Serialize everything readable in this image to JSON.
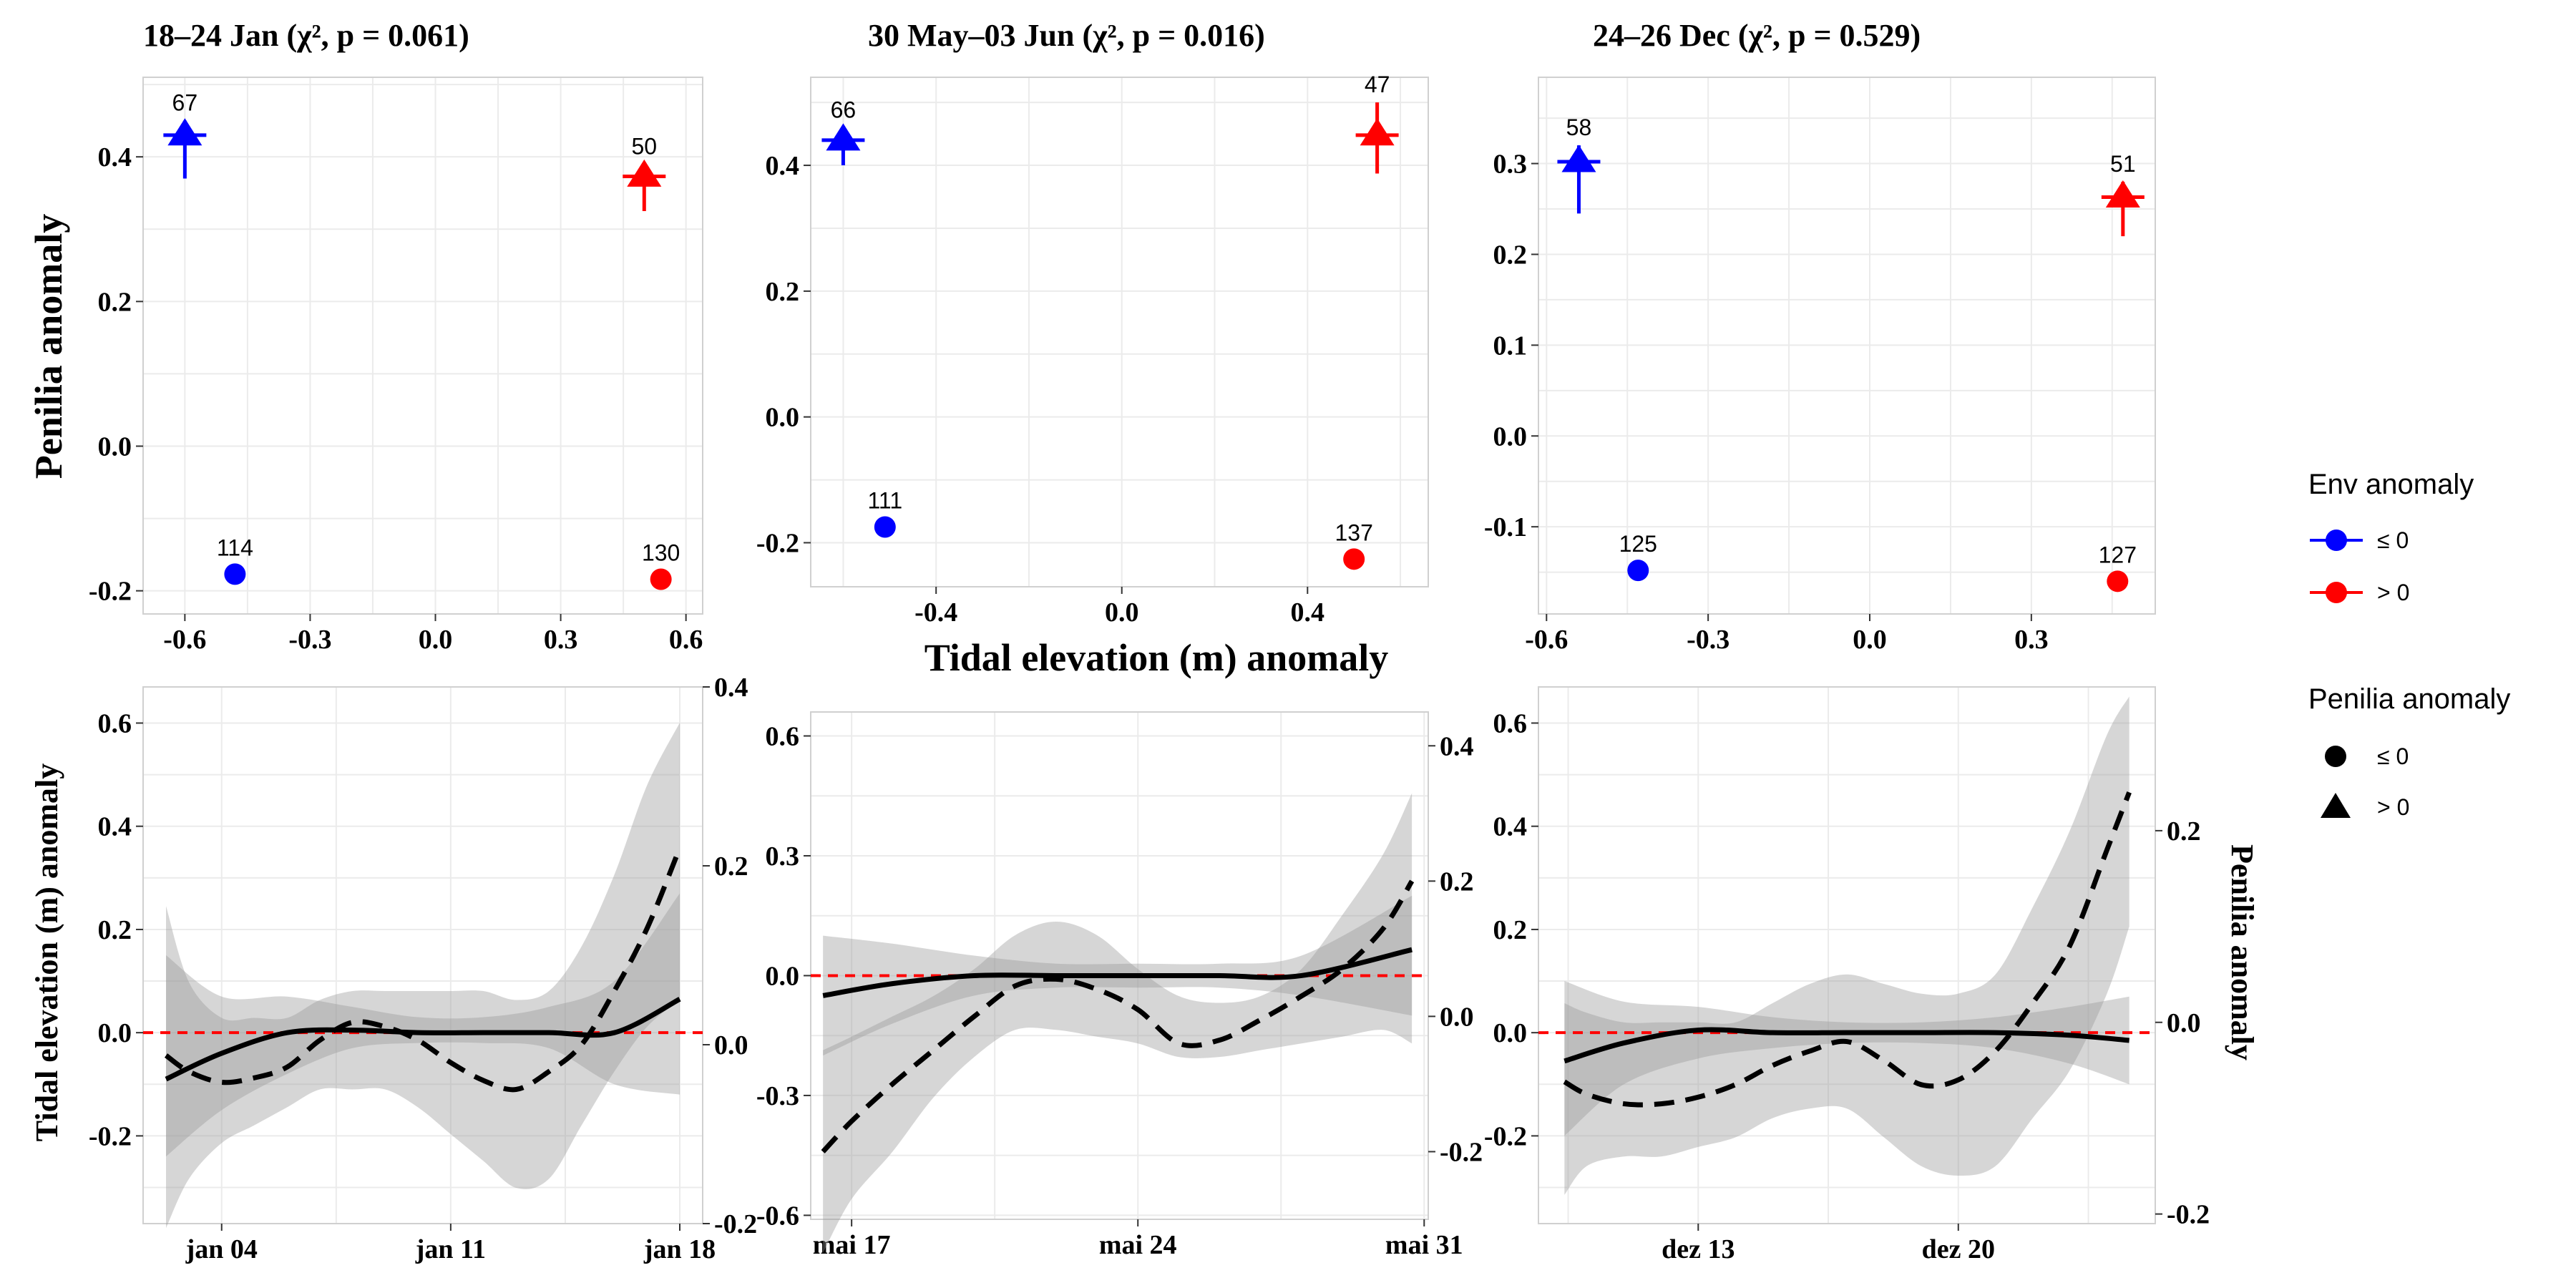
{
  "figure": {
    "top_ylabel": "Penilia anomaly",
    "top_xlabel": "Tidal elevation (m) anomaly",
    "bottom_ylabel_left": "Tidal elevation (m) anomaly",
    "bottom_ylabel_right": "Penilia anomaly"
  },
  "legend": {
    "env_title": "Env anomaly",
    "env_items": [
      {
        "label": "≤ 0",
        "color": "#0000ff"
      },
      {
        "label": "> 0",
        "color": "#ff0000"
      }
    ],
    "pen_title": "Penilia anomaly",
    "pen_items": [
      {
        "label": "≤ 0",
        "shape": "circle"
      },
      {
        "label": "> 0",
        "shape": "triangle"
      }
    ]
  },
  "colors": {
    "env_low": "#0000ff",
    "env_high": "#ff0000",
    "band": "#999999",
    "zero_line": "#ff0000",
    "grid": "#ebebeb",
    "panel_border": "#d0d0d0"
  },
  "chart_data": [
    {
      "type": "scatter",
      "title": "18–24 Jan (χ², p = 0.061)",
      "xlim": [
        -0.7,
        0.64
      ],
      "ylim": [
        -0.232,
        0.51
      ],
      "xticks": [
        -0.6,
        -0.3,
        0.0,
        0.3,
        0.6
      ],
      "xtick_labels": [
        "-0.6",
        "-0.3",
        "0.0",
        "0.3",
        "0.6"
      ],
      "yticks": [
        -0.2,
        0.0,
        0.2,
        0.4
      ],
      "ytick_labels": [
        "-0.2",
        "0.0",
        "0.2",
        "0.4"
      ],
      "points": [
        {
          "x": -0.6,
          "y": 0.43,
          "err": [
            0.37,
            0.45
          ],
          "env": "low",
          "penilia": "high",
          "n": "67"
        },
        {
          "x": 0.5,
          "y": 0.373,
          "err": [
            0.325,
            0.39
          ],
          "env": "high",
          "penilia": "high",
          "n": "50"
        },
        {
          "x": -0.48,
          "y": -0.177,
          "env": "low",
          "penilia": "low",
          "n": "114"
        },
        {
          "x": 0.54,
          "y": -0.184,
          "env": "high",
          "penilia": "low",
          "n": "130"
        }
      ]
    },
    {
      "type": "scatter",
      "title": "30 May–03 Jun (χ², p = 0.016)",
      "xlim": [
        -0.67,
        0.66
      ],
      "ylim": [
        -0.27,
        0.54
      ],
      "xticks": [
        -0.4,
        0.0,
        0.4
      ],
      "xtick_labels": [
        "-0.4",
        "0.0",
        "0.4"
      ],
      "yticks": [
        -0.2,
        0.0,
        0.2,
        0.4
      ],
      "ytick_labels": [
        "-0.2",
        "0.0",
        "0.2",
        "0.4"
      ],
      "points": [
        {
          "x": -0.6,
          "y": 0.44,
          "err": [
            0.4,
            0.46
          ],
          "env": "low",
          "penilia": "high",
          "n": "66"
        },
        {
          "x": 0.55,
          "y": 0.448,
          "err": [
            0.387,
            0.5
          ],
          "env": "high",
          "penilia": "high",
          "n": "47"
        },
        {
          "x": -0.51,
          "y": -0.175,
          "env": "low",
          "penilia": "low",
          "n": "111"
        },
        {
          "x": 0.5,
          "y": -0.226,
          "env": "high",
          "penilia": "low",
          "n": "137"
        }
      ]
    },
    {
      "type": "scatter",
      "title": "24–26 Dec (χ², p = 0.529)",
      "xlim": [
        -0.615,
        0.53
      ],
      "ylim": [
        -0.196,
        0.395
      ],
      "xticks": [
        -0.6,
        -0.3,
        0.0,
        0.3
      ],
      "xtick_labels": [
        "-0.6",
        "-0.3",
        "0.0",
        "0.3"
      ],
      "yticks": [
        -0.1,
        0.0,
        0.1,
        0.2,
        0.3
      ],
      "ytick_labels": [
        "-0.1",
        "0.0",
        "0.1",
        "0.2",
        "0.3"
      ],
      "points": [
        {
          "x": -0.54,
          "y": 0.302,
          "err": [
            0.245,
            0.32
          ],
          "env": "low",
          "penilia": "high",
          "n": "58"
        },
        {
          "x": 0.47,
          "y": 0.263,
          "err": [
            0.22,
            0.28
          ],
          "env": "high",
          "penilia": "high",
          "n": "51"
        },
        {
          "x": -0.43,
          "y": -0.148,
          "env": "low",
          "penilia": "low",
          "n": "125"
        },
        {
          "x": 0.46,
          "y": -0.16,
          "env": "high",
          "penilia": "low",
          "n": "127"
        }
      ]
    },
    {
      "type": "line",
      "xlim": [
        1.6,
        18.7
      ],
      "ylim": [
        -0.37,
        0.67
      ],
      "ylim_right": [
        -0.2,
        0.4
      ],
      "xticks": [
        4,
        11,
        18
      ],
      "xtick_labels": [
        "jan 04",
        "jan 11",
        "jan 18"
      ],
      "yticks": [
        -0.2,
        0.0,
        0.2,
        0.4,
        0.6
      ],
      "ytick_labels": [
        "-0.2",
        "0.0",
        "0.2",
        "0.4",
        "0.6"
      ],
      "yticks_right": [
        -0.2,
        0.0,
        0.2,
        0.4
      ],
      "ytick_labels_right": [
        "-0.2",
        "0.0",
        "0.2",
        "0.4"
      ],
      "tide_x": [
        2.3,
        4,
        6,
        8,
        10,
        12,
        14,
        16,
        18
      ],
      "tide": [
        -0.09,
        -0.04,
        0.0,
        0.005,
        0.0,
        0.0,
        0.0,
        0.0,
        0.065
      ],
      "tide_lo": [
        -0.24,
        -0.15,
        -0.08,
        -0.03,
        -0.02,
        -0.02,
        -0.03,
        -0.1,
        -0.12
      ],
      "tide_hi": [
        0.15,
        0.07,
        0.07,
        0.05,
        0.03,
        0.03,
        0.05,
        0.1,
        0.27
      ],
      "penilia_x": [
        2.3,
        3,
        4,
        5,
        6,
        7,
        8,
        9,
        10,
        11,
        12,
        13,
        14,
        15,
        16,
        17,
        18
      ],
      "penilia": [
        -0.012,
        -0.03,
        -0.042,
        -0.037,
        -0.025,
        0.005,
        0.025,
        0.02,
        0.005,
        -0.02,
        -0.04,
        -0.05,
        -0.03,
        0.0,
        0.06,
        0.13,
        0.22
      ],
      "penilia_lo": [
        -0.205,
        -0.15,
        -0.11,
        -0.09,
        -0.07,
        -0.05,
        -0.05,
        -0.05,
        -0.07,
        -0.1,
        -0.13,
        -0.16,
        -0.15,
        -0.09,
        -0.03,
        0.02,
        0.05
      ],
      "penilia_hi": [
        0.155,
        0.07,
        0.03,
        0.03,
        0.03,
        0.05,
        0.06,
        0.06,
        0.06,
        0.06,
        0.06,
        0.05,
        0.06,
        0.11,
        0.19,
        0.29,
        0.36
      ]
    },
    {
      "type": "line",
      "xlim": [
        16.0,
        31.1
      ],
      "ylim": [
        -0.61,
        0.66
      ],
      "ylim_right": [
        -0.3,
        0.45
      ],
      "xticks": [
        17,
        24,
        31
      ],
      "xtick_labels": [
        "mai 17",
        "mai 24",
        "mai 31"
      ],
      "yticks": [
        -0.6,
        -0.3,
        0.0,
        0.3,
        0.6
      ],
      "ytick_labels": [
        "-0.6",
        "-0.3",
        "0.0",
        "0.3",
        "0.6"
      ],
      "yticks_right": [
        -0.2,
        0.0,
        0.2,
        0.4
      ],
      "ytick_labels_right": [
        "-0.2",
        "0.0",
        "0.2",
        "0.4"
      ],
      "tide_x": [
        16.3,
        18,
        20,
        22,
        24,
        26,
        28,
        30.7
      ],
      "tide": [
        -0.05,
        -0.02,
        0.0,
        0.0,
        0.0,
        0.0,
        0.0,
        0.065
      ],
      "tide_lo": [
        -0.2,
        -0.12,
        -0.05,
        -0.03,
        -0.03,
        -0.03,
        -0.05,
        -0.1
      ],
      "tide_hi": [
        0.1,
        0.08,
        0.05,
        0.03,
        0.03,
        0.03,
        0.05,
        0.2
      ],
      "penilia_x": [
        16.3,
        17,
        18,
        19,
        20,
        21,
        22,
        23,
        24,
        25,
        26,
        27,
        28,
        29,
        30,
        30.7
      ],
      "penilia": [
        -0.2,
        -0.155,
        -0.1,
        -0.05,
        0.0,
        0.045,
        0.055,
        0.04,
        0.01,
        -0.04,
        -0.035,
        -0.005,
        0.03,
        0.07,
        0.13,
        0.2
      ],
      "penilia_lo": [
        -0.35,
        -0.27,
        -0.2,
        -0.12,
        -0.06,
        -0.02,
        -0.02,
        -0.03,
        -0.04,
        -0.06,
        -0.06,
        -0.05,
        -0.04,
        -0.03,
        -0.02,
        -0.04
      ],
      "penilia_hi": [
        -0.05,
        -0.03,
        0.0,
        0.03,
        0.07,
        0.12,
        0.14,
        0.12,
        0.07,
        0.03,
        0.02,
        0.03,
        0.07,
        0.15,
        0.24,
        0.33
      ]
    },
    {
      "type": "line",
      "xlim": [
        8.7,
        25.3
      ],
      "ylim": [
        -0.37,
        0.67
      ],
      "ylim_right": [
        -0.21,
        0.35
      ],
      "xticks": [
        13,
        20
      ],
      "xtick_labels": [
        "dez 13",
        "dez 20"
      ],
      "yticks": [
        -0.2,
        0.0,
        0.2,
        0.4,
        0.6
      ],
      "ytick_labels": [
        "-0.2",
        "0.0",
        "0.2",
        "0.4",
        "0.6"
      ],
      "yticks_right": [
        -0.2,
        0.0,
        0.2
      ],
      "ytick_labels_right": [
        "-0.2",
        "0.0",
        "0.2"
      ],
      "tide_x": [
        9.4,
        11,
        13,
        15,
        17,
        19,
        21,
        23,
        24.6
      ],
      "tide": [
        -0.055,
        -0.02,
        0.005,
        0.0,
        0.0,
        0.0,
        0.0,
        -0.005,
        -0.015
      ],
      "tide_lo": [
        -0.2,
        -0.1,
        -0.05,
        -0.03,
        -0.02,
        -0.02,
        -0.03,
        -0.06,
        -0.1
      ],
      "tide_hi": [
        0.1,
        0.06,
        0.05,
        0.03,
        0.02,
        0.02,
        0.03,
        0.05,
        0.07
      ],
      "penilia_x": [
        9.4,
        10,
        11,
        12,
        13,
        14,
        15,
        16,
        17,
        18,
        19,
        20,
        21,
        22,
        23,
        24,
        24.6
      ],
      "penilia": [
        -0.062,
        -0.075,
        -0.085,
        -0.085,
        -0.078,
        -0.065,
        -0.045,
        -0.03,
        -0.02,
        -0.04,
        -0.065,
        -0.06,
        -0.03,
        0.02,
        0.08,
        0.18,
        0.24
      ],
      "penilia_lo": [
        -0.18,
        -0.15,
        -0.14,
        -0.14,
        -0.13,
        -0.12,
        -0.1,
        -0.09,
        -0.09,
        -0.12,
        -0.15,
        -0.16,
        -0.15,
        -0.1,
        -0.05,
        0.03,
        0.1
      ],
      "penilia_hi": [
        0.02,
        0.01,
        0.0,
        0.0,
        0.0,
        0.0,
        0.02,
        0.04,
        0.05,
        0.04,
        0.03,
        0.03,
        0.05,
        0.12,
        0.2,
        0.3,
        0.34
      ]
    }
  ]
}
